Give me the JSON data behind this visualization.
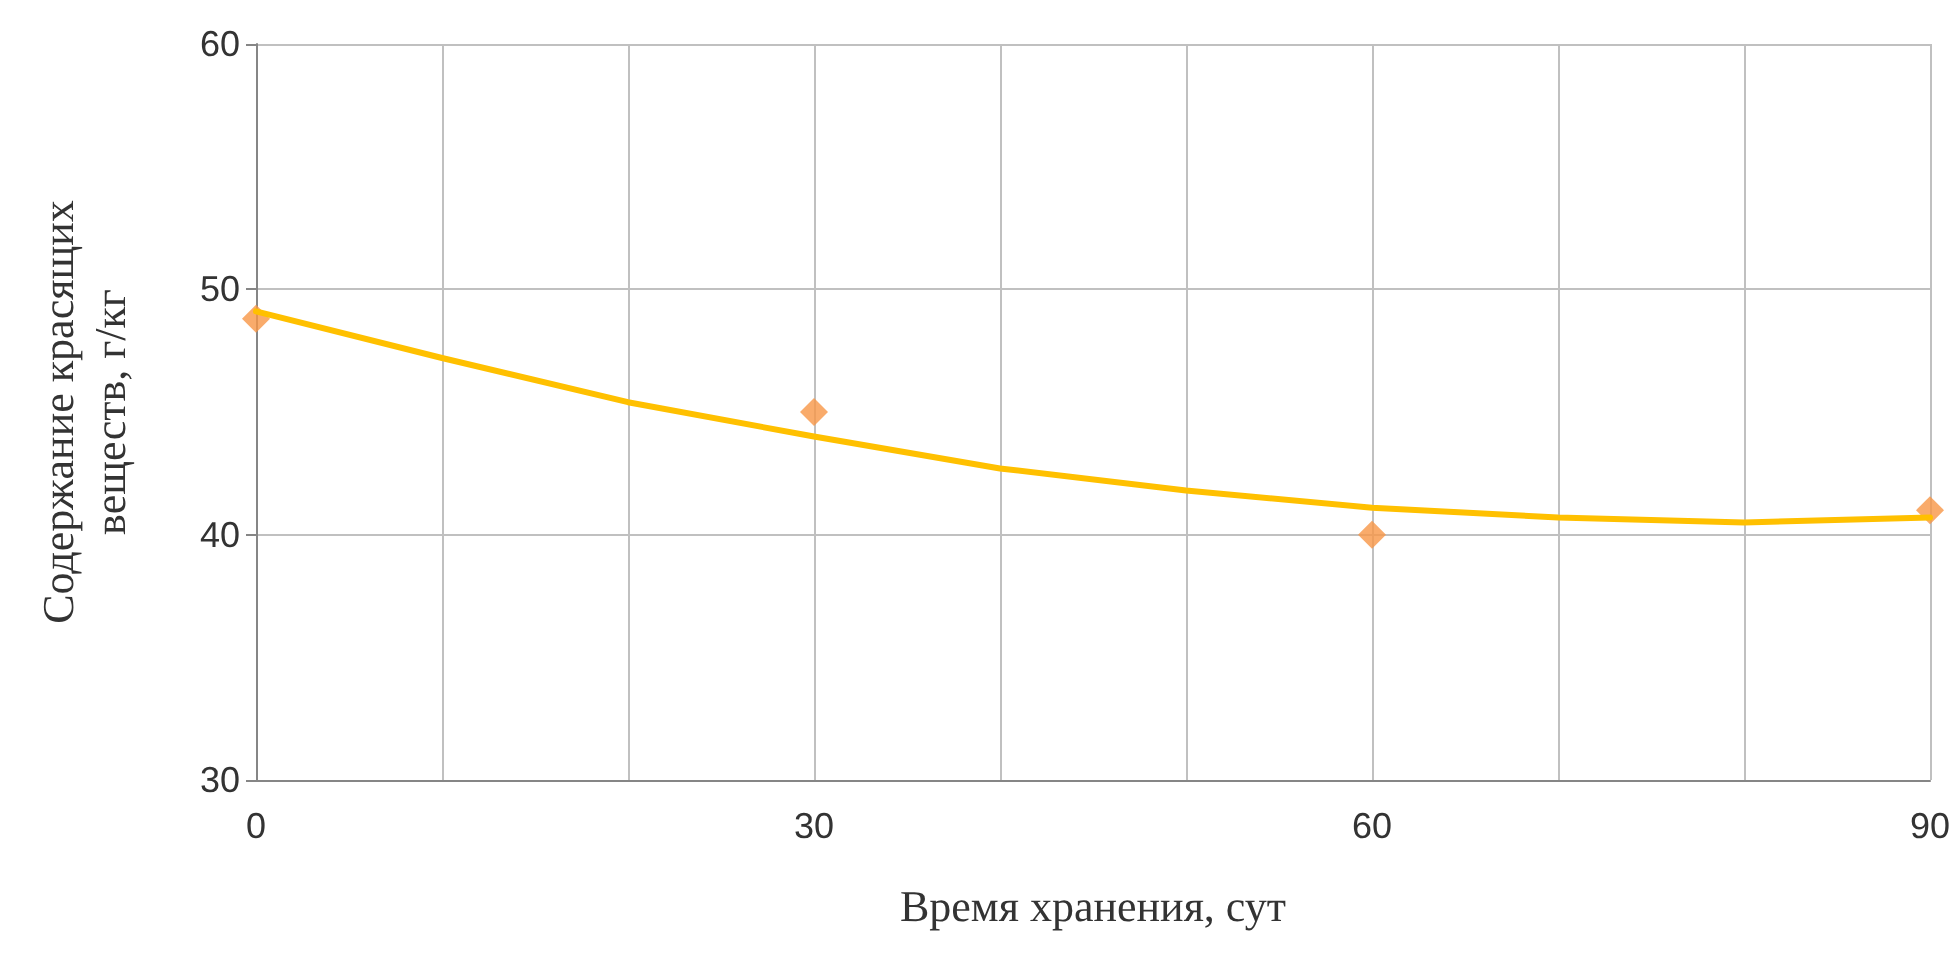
{
  "chart_data": {
    "type": "scatter",
    "xlabel": "Время хранения, сут",
    "ylabel": "Содержание красящих\nвеществ, г/кг",
    "x": [
      0,
      30,
      60,
      90
    ],
    "series": [
      {
        "color": "#f79646",
        "values": [
          48.8,
          45,
          40,
          41
        ],
        "marker": "diamond"
      },
      {
        "type": "line",
        "color": "#ffc000",
        "x": [
          0,
          10,
          20,
          30,
          40,
          50,
          60,
          70,
          80,
          90
        ],
        "values": [
          49.1,
          47.2,
          45.4,
          44.0,
          42.7,
          41.8,
          41.1,
          40.7,
          40.5,
          40.7
        ],
        "marker": "none",
        "line_style": "solid"
      }
    ],
    "xlim": [
      0,
      90
    ],
    "xticks": [
      0,
      {
        "value": 10,
        "label": null
      },
      {
        "value": 20,
        "label": null
      },
      30,
      {
        "value": 40,
        "label": null
      },
      {
        "value": 50,
        "label": null
      },
      60,
      {
        "value": 70,
        "label": null
      },
      {
        "value": 80,
        "label": null
      },
      90
    ],
    "ylim": [
      30,
      60
    ],
    "yticks": [
      30,
      40,
      50,
      60
    ],
    "grid": true
  }
}
